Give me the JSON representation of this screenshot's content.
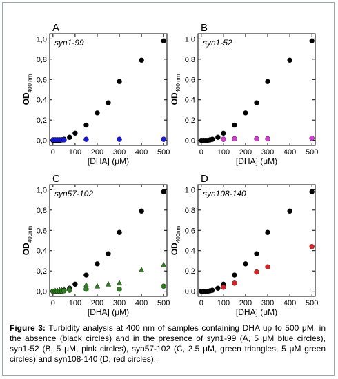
{
  "chart_data": [
    {
      "type": "scatter",
      "panel": "A",
      "title": "syn1-99",
      "x_label": "[DHA] (μM)",
      "y_label": "OD",
      "y_label_sub": "400 nm",
      "xlim": [
        -15,
        515
      ],
      "ylim": [
        -0.05,
        1.05
      ],
      "xticks": [
        0,
        100,
        200,
        300,
        400,
        500
      ],
      "yticks": [
        {
          "value": 0,
          "label": "0,0"
        },
        {
          "value": 0.2,
          "label": "0,2"
        },
        {
          "value": 0.4,
          "label": "0,4"
        },
        {
          "value": 0.6,
          "label": "0,6"
        },
        {
          "value": 0.8,
          "label": "0,8"
        },
        {
          "value": 1.0,
          "label": "1,0"
        }
      ],
      "series": [
        {
          "color": "#000000",
          "marker": "circle",
          "x": [
            0,
            10,
            20,
            30,
            40,
            50,
            75,
            100,
            150,
            200,
            250,
            300,
            400,
            500
          ],
          "values": [
            0,
            0,
            0,
            0,
            0.005,
            0.01,
            0.03,
            0.07,
            0.15,
            0.27,
            0.37,
            0.58,
            0.79,
            0.98
          ]
        },
        {
          "color": "#1a1adc",
          "marker": "circle",
          "x": [
            0,
            10,
            20,
            30,
            40,
            50,
            150,
            300,
            500
          ],
          "values": [
            0.005,
            0.005,
            0.005,
            0.005,
            0.005,
            0.005,
            0.01,
            0.01,
            0.01
          ]
        }
      ]
    },
    {
      "type": "scatter",
      "panel": "B",
      "title": "syn1-52",
      "x_label": "[DHA] (μM)",
      "y_label": "OD",
      "y_label_sub": "400 nm",
      "xlim": [
        -15,
        515
      ],
      "ylim": [
        -0.05,
        1.05
      ],
      "xticks": [
        0,
        100,
        200,
        300,
        400,
        500
      ],
      "yticks": [
        {
          "value": 0,
          "label": "0,0"
        },
        {
          "value": 0.2,
          "label": "0,2"
        },
        {
          "value": 0.4,
          "label": "0,4"
        },
        {
          "value": 0.6,
          "label": "0,6"
        },
        {
          "value": 0.8,
          "label": "0,8"
        },
        {
          "value": 1.0,
          "label": "1,0"
        }
      ],
      "series": [
        {
          "color": "#000000",
          "marker": "circle",
          "x": [
            0,
            10,
            20,
            30,
            40,
            50,
            75,
            100,
            150,
            200,
            250,
            300,
            400,
            500
          ],
          "values": [
            0,
            0,
            0,
            0,
            0.005,
            0.01,
            0.03,
            0.07,
            0.15,
            0.27,
            0.37,
            0.58,
            0.79,
            0.98
          ]
        },
        {
          "color": "#d43cd4",
          "marker": "circle",
          "x": [
            100,
            150,
            250,
            300,
            500
          ],
          "values": [
            0.01,
            0.015,
            0.015,
            0.015,
            0.02
          ]
        }
      ]
    },
    {
      "type": "scatter",
      "panel": "C",
      "title": "syn57-102",
      "x_label": "[DHA] (μM)",
      "y_label": "OD",
      "y_label_sub": "400nm",
      "xlim": [
        -15,
        515
      ],
      "ylim": [
        -0.05,
        1.05
      ],
      "xticks": [
        0,
        100,
        200,
        300,
        400,
        500
      ],
      "yticks": [
        {
          "value": 0,
          "label": "0,0"
        },
        {
          "value": 0.2,
          "label": "0,2"
        },
        {
          "value": 0.4,
          "label": "0,4"
        },
        {
          "value": 0.6,
          "label": "0,6"
        },
        {
          "value": 0.8,
          "label": "0,8"
        },
        {
          "value": 1.0,
          "label": "1,0"
        }
      ],
      "series": [
        {
          "color": "#000000",
          "marker": "circle",
          "x": [
            0,
            10,
            20,
            30,
            40,
            50,
            75,
            100,
            150,
            200,
            250,
            300,
            400,
            500
          ],
          "values": [
            0,
            0,
            0,
            0,
            0.005,
            0.01,
            0.03,
            0.07,
            0.16,
            0.27,
            0.37,
            0.58,
            0.79,
            0.98
          ]
        },
        {
          "color": "#2e7d1e",
          "marker": "triangle",
          "x": [
            10,
            20,
            30,
            40,
            50,
            75,
            150,
            200,
            250,
            300,
            400,
            500
          ],
          "values": [
            0.005,
            0.005,
            0.01,
            0.01,
            0.02,
            0.03,
            0.06,
            0.05,
            0.07,
            0.08,
            0.21,
            0.26
          ]
        },
        {
          "color": "#2e7d1e",
          "marker": "circle",
          "x": [
            0,
            10,
            20,
            30,
            40,
            50,
            75,
            150,
            300,
            500
          ],
          "values": [
            0,
            0,
            0,
            0,
            0,
            0.005,
            0.01,
            0.02,
            0.02,
            0.05
          ]
        }
      ]
    },
    {
      "type": "scatter",
      "panel": "D",
      "title": "syn108-140",
      "x_label": "[DHA] (μM)",
      "y_label": "OD",
      "y_label_sub": "400nm",
      "xlim": [
        -15,
        515
      ],
      "ylim": [
        -0.05,
        1.05
      ],
      "xticks": [
        0,
        100,
        200,
        300,
        400,
        500
      ],
      "yticks": [
        {
          "value": 0,
          "label": "0,0"
        },
        {
          "value": 0.2,
          "label": "0,2"
        },
        {
          "value": 0.4,
          "label": "0,4"
        },
        {
          "value": 0.6,
          "label": "0,6"
        },
        {
          "value": 0.8,
          "label": "0,8"
        },
        {
          "value": 1.0,
          "label": "1,0"
        }
      ],
      "series": [
        {
          "color": "#000000",
          "marker": "circle",
          "x": [
            0,
            10,
            20,
            30,
            40,
            50,
            75,
            100,
            150,
            200,
            250,
            300,
            400,
            500
          ],
          "values": [
            0,
            0,
            0,
            0,
            0.005,
            0.01,
            0.03,
            0.07,
            0.16,
            0.27,
            0.37,
            0.58,
            0.79,
            0.98
          ]
        },
        {
          "color": "#e02020",
          "marker": "circle",
          "x": [
            100,
            150,
            250,
            300,
            500
          ],
          "values": [
            0.04,
            0.08,
            0.19,
            0.24,
            0.44
          ]
        }
      ]
    }
  ],
  "caption": {
    "label": "Figure 3:",
    "text": "Turbidity analysis at 400 nm of samples containing DHA up to 500 μM, in the absence (black circles) and in the presence of syn1-99 (A, 5 μM blue circles), syn1-52 (B, 5 μM, pink circles), syn57-102 (C, 2.5 μM, green triangles, 5 μM green circles) and syn108-140 (D, red circles)."
  }
}
